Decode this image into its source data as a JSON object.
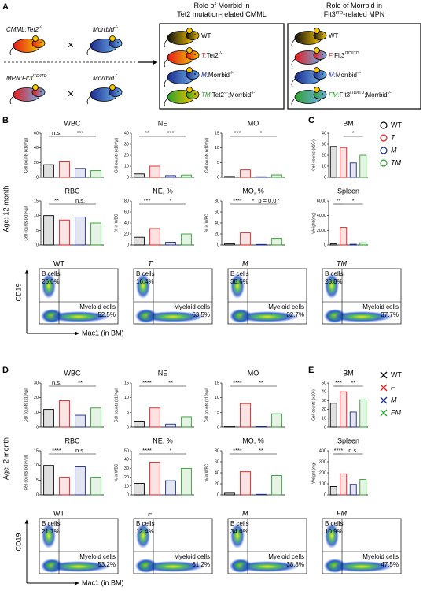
{
  "panel_labels": [
    "A",
    "B",
    "C",
    "D",
    "E"
  ],
  "cross": "×",
  "parents": [
    {
      "name": "CMML:",
      "gene": [
        [
          "Tet2",
          "-/-"
        ]
      ]
    },
    {
      "name": "MPN:",
      "gene": [
        [
          "Flt3",
          "ITD/ITD"
        ]
      ]
    }
  ],
  "partner": [
    [
      "Morrbid",
      "-/-"
    ]
  ],
  "boxes": [
    {
      "title": [
        [
          [
            "Role of Morrbid in"
          ]
        ],
        [
          [
            "Tet2 mutation-related CMML"
          ]
        ]
      ],
      "items": [
        {
          "code": "WT"
        },
        {
          "code": "T:",
          "label": [
            [
              "Tet2",
              "-/-"
            ]
          ]
        },
        {
          "code": "M:",
          "label": [
            [
              "Morrbid",
              "-/-"
            ]
          ]
        },
        {
          "code": "TM:",
          "label": [
            [
              "Tet2",
              "-/-"
            ],
            [
              ";Morrbid",
              "-/-"
            ]
          ]
        }
      ]
    },
    {
      "title": [
        [
          [
            "Role of Morrbid in"
          ]
        ],
        [
          [
            "Flt3",
            "ITD"
          ],
          [
            "-related MPN"
          ]
        ]
      ],
      "items": [
        {
          "code": "WT"
        },
        {
          "code": "F:",
          "label": [
            [
              "Flt3",
              "ITD/ITD"
            ]
          ]
        },
        {
          "code": "M:",
          "label": [
            [
              "Morrbid",
              "-/-"
            ]
          ]
        },
        {
          "code": "FM:",
          "label": [
            [
              "Flt3",
              "ITD/ITD"
            ],
            [
              ";Morrbid",
              "-/-"
            ]
          ]
        }
      ]
    }
  ],
  "b_label": "B cells",
  "myeloid_label": "Myeloid cells",
  "cd19": "CD19",
  "mac1": "Mac1 (in BM)",
  "sections": [
    {
      "age": "Age: 12-month",
      "legend": {
        "labels": [
          "WT",
          "T",
          "M",
          "TM"
        ],
        "colors": [
          "#000000",
          "#e41a1c",
          "#1a2a8c",
          "#2ca02c"
        ],
        "marker": "circle"
      },
      "flow": {
        "titles": [
          "WT",
          "T",
          "M",
          "TM"
        ],
        "b_cells": [
          "26.0%",
          "16.4%",
          "38.6%",
          "28.8%"
        ],
        "myeloid": [
          "52.5%",
          "63.5%",
          "32.7%",
          "37.7%"
        ]
      }
    },
    {
      "age": "Age: 2-month",
      "legend": {
        "labels": [
          "WT",
          "F",
          "M",
          "FM"
        ],
        "colors": [
          "#000000",
          "#e41a1c",
          "#1a2a8c",
          "#2ca02c"
        ],
        "marker": "x"
      },
      "flow": {
        "titles": [
          "WT",
          "F",
          "M",
          "FM"
        ],
        "b_cells": [
          "21.7%",
          "12.4%",
          "34.6%",
          "10.9%"
        ],
        "myeloid": [
          "53.2%",
          "61.2%",
          "38.8%",
          "47.5%"
        ]
      }
    }
  ],
  "chart_data": [
    {
      "type": "bar",
      "title": "WBC",
      "ylabel": "Cell counts (x10³/µl)",
      "values": [
        17,
        22,
        12,
        9
      ],
      "ylim": [
        0,
        60
      ],
      "yticks": [
        0,
        20,
        40,
        60
      ],
      "annotations": [
        "n.s.",
        "***"
      ]
    },
    {
      "type": "bar",
      "title": "NE",
      "ylabel": "Cell counts (x10³/µl)",
      "values": [
        3,
        10,
        1.5,
        2
      ],
      "ylim": [
        0,
        40
      ],
      "yticks": [
        0,
        10,
        20,
        30,
        40
      ],
      "annotations": [
        "**",
        "***"
      ]
    },
    {
      "type": "bar",
      "title": "MO",
      "ylabel": "Cell counts (x10³/µl)",
      "values": [
        0.3,
        2.5,
        0.2,
        0.8
      ],
      "ylim": [
        0,
        15
      ],
      "yticks": [
        0,
        5,
        10,
        15
      ],
      "annotations": [
        "***",
        "*"
      ]
    },
    {
      "type": "bar",
      "title": "RBC",
      "ylabel": "Cell counts (x10⁶/µl)",
      "values": [
        10,
        8.5,
        9.5,
        7.5
      ],
      "ylim": [
        0,
        15
      ],
      "yticks": [
        0,
        5,
        10,
        15
      ],
      "annotations": [
        "**",
        "n.s."
      ]
    },
    {
      "type": "bar",
      "title": "NE, %",
      "ylabel": "% in WBC",
      "values": [
        14,
        30,
        5,
        20
      ],
      "ylim": [
        0,
        80
      ],
      "yticks": [
        0,
        20,
        40,
        60,
        80
      ],
      "annotations": [
        "***",
        "*"
      ]
    },
    {
      "type": "bar",
      "title": "MO, %",
      "ylabel": "% in WBC",
      "values": [
        2,
        22,
        1,
        12
      ],
      "ylim": [
        0,
        80
      ],
      "yticks": [
        0,
        20,
        40,
        60,
        80
      ],
      "annotations": [
        "****",
        "*",
        "p = 0.07"
      ]
    },
    {
      "type": "bar",
      "title": "BM",
      "ylabel": "Cell counts (x10⁶)",
      "values": [
        28,
        27,
        13,
        20
      ],
      "ylim": [
        0,
        40
      ],
      "yticks": [
        0,
        10,
        20,
        30,
        40
      ],
      "annotations": [
        "*"
      ]
    },
    {
      "type": "bar",
      "title": "Spleen",
      "ylabel": "Weight (mg)",
      "values": [
        150,
        2400,
        100,
        300
      ],
      "ylim": [
        0,
        6000
      ],
      "yticks": [
        0,
        2000,
        4000,
        6000
      ],
      "annotations": [
        "**",
        "*"
      ]
    },
    {
      "type": "bar",
      "title": "WBC",
      "ylabel": "Cell counts (x10³/µl)",
      "values": [
        12,
        18,
        8,
        13
      ],
      "ylim": [
        0,
        30
      ],
      "yticks": [
        0,
        10,
        20,
        30
      ],
      "annotations": [
        "n.s.",
        "**"
      ]
    },
    {
      "type": "bar",
      "title": "NE",
      "ylabel": "Cell counts (x10³/µl)",
      "values": [
        2,
        6.5,
        1,
        3.5
      ],
      "ylim": [
        0,
        15
      ],
      "yticks": [
        0,
        5,
        10,
        15
      ],
      "annotations": [
        "****",
        "**"
      ]
    },
    {
      "type": "bar",
      "title": "MO",
      "ylabel": "Cell counts (x10³/µl)",
      "values": [
        0.3,
        8,
        0.2,
        4.5
      ],
      "ylim": [
        0,
        15
      ],
      "yticks": [
        0,
        5,
        10,
        15
      ],
      "annotations": [
        "****",
        "**"
      ]
    },
    {
      "type": "bar",
      "title": "RBC",
      "ylabel": "Cell counts (x10⁶/µl)",
      "values": [
        10,
        6,
        9.5,
        6
      ],
      "ylim": [
        0,
        15
      ],
      "yticks": [
        0,
        5,
        10,
        15
      ],
      "annotations": [
        "****",
        "n.s."
      ]
    },
    {
      "type": "bar",
      "title": "NE, %",
      "ylabel": "% in WBC",
      "values": [
        13,
        37,
        16,
        30
      ],
      "ylim": [
        0,
        50
      ],
      "yticks": [
        0,
        10,
        20,
        30,
        40,
        50
      ],
      "annotations": [
        "****",
        "*"
      ]
    },
    {
      "type": "bar",
      "title": "MO, %",
      "ylabel": "% in WBC",
      "values": [
        3,
        42,
        1,
        35
      ],
      "ylim": [
        0,
        80
      ],
      "yticks": [
        0,
        20,
        40,
        60,
        80
      ],
      "annotations": [
        "****",
        "**"
      ]
    },
    {
      "type": "bar",
      "title": "BM",
      "ylabel": "Cell counts (x10⁶)",
      "values": [
        27,
        40,
        17,
        31
      ],
      "ylim": [
        0,
        50
      ],
      "yticks": [
        0,
        10,
        20,
        30,
        40,
        50
      ],
      "annotations": [
        "***",
        "**"
      ]
    },
    {
      "type": "bar",
      "title": "Spleen",
      "ylabel": "Weight (mg)",
      "values": [
        75,
        190,
        95,
        140
      ],
      "ylim": [
        0,
        400
      ],
      "yticks": [
        0,
        100,
        200,
        300,
        400
      ],
      "annotations": [
        "****",
        "n.s."
      ]
    }
  ]
}
